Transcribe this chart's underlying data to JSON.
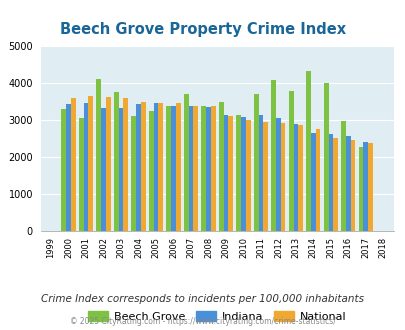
{
  "title": "Beech Grove Property Crime Index",
  "years": [
    1999,
    2000,
    2001,
    2002,
    2003,
    2004,
    2005,
    2006,
    2007,
    2008,
    2009,
    2010,
    2011,
    2012,
    2013,
    2014,
    2015,
    2016,
    2017,
    2018
  ],
  "beech_grove": [
    null,
    3300,
    3050,
    4100,
    3750,
    3100,
    3250,
    3380,
    3700,
    3380,
    3480,
    3130,
    3720,
    4090,
    3780,
    4320,
    4000,
    2980,
    2280,
    null
  ],
  "indiana": [
    null,
    3430,
    3470,
    3340,
    3320,
    3430,
    3460,
    3380,
    3370,
    3360,
    3130,
    3080,
    3130,
    3060,
    2890,
    2650,
    2620,
    2560,
    2420,
    null
  ],
  "national": [
    null,
    3600,
    3640,
    3620,
    3600,
    3500,
    3470,
    3470,
    3380,
    3370,
    3100,
    3000,
    2940,
    2920,
    2880,
    2760,
    2510,
    2470,
    2370,
    null
  ],
  "bar_colors": [
    "#7dc242",
    "#4a90d9",
    "#f0a830"
  ],
  "bg_color": "#e0eef4",
  "title_color": "#1a6699",
  "ylim": [
    0,
    5000
  ],
  "yticks": [
    0,
    1000,
    2000,
    3000,
    4000,
    5000
  ],
  "legend_labels": [
    "Beech Grove",
    "Indiana",
    "National"
  ],
  "note": "Crime Index corresponds to incidents per 100,000 inhabitants",
  "footer": "© 2025 CityRating.com - https://www.cityrating.com/crime-statistics/"
}
